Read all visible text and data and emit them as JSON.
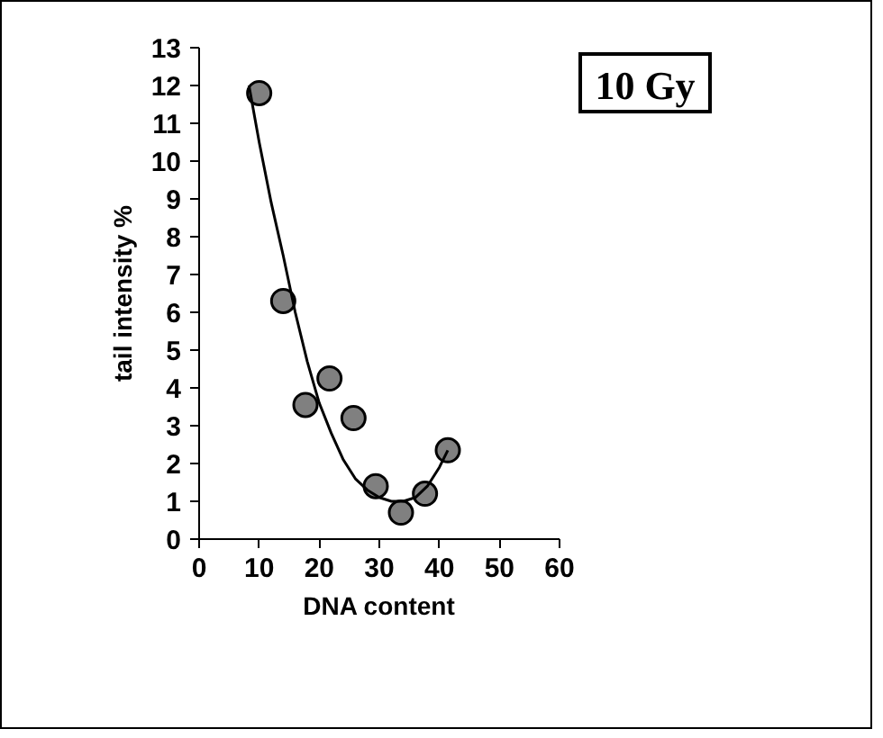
{
  "chart_data": {
    "type": "scatter",
    "xlabel": "DNA content",
    "ylabel": "tail intensity %",
    "annotations": [
      "10 Gy"
    ],
    "x": [
      10,
      14,
      17.7,
      21.7,
      25.7,
      29.4,
      33.6,
      37.6,
      41.4
    ],
    "series": [
      {
        "color": "#808080",
        "marker": "circle",
        "values": [
          11.8,
          6.3,
          3.55,
          4.25,
          3.2,
          1.4,
          0.7,
          1.2,
          2.35
        ]
      },
      {
        "type": "line",
        "color": "#000000",
        "x": [
          8.3,
          10,
          12,
          14,
          16,
          18,
          20,
          22,
          24,
          26,
          28,
          30,
          32,
          34,
          36,
          38,
          40,
          41.4
        ],
        "values": [
          12,
          10.5,
          8.9,
          7.5,
          6.0,
          4.7,
          3.6,
          2.8,
          2.1,
          1.6,
          1.3,
          1.1,
          1.0,
          1.0,
          1.1,
          1.4,
          1.9,
          2.35
        ]
      }
    ],
    "grid": false,
    "xlim": [
      0,
      60
    ],
    "xticks": [
      0,
      10,
      20,
      30,
      40,
      50,
      60
    ],
    "ylim": [
      0,
      13
    ],
    "yticks": [
      0,
      1,
      2,
      3,
      4,
      5,
      6,
      7,
      8,
      9,
      10,
      11,
      12,
      13
    ]
  }
}
